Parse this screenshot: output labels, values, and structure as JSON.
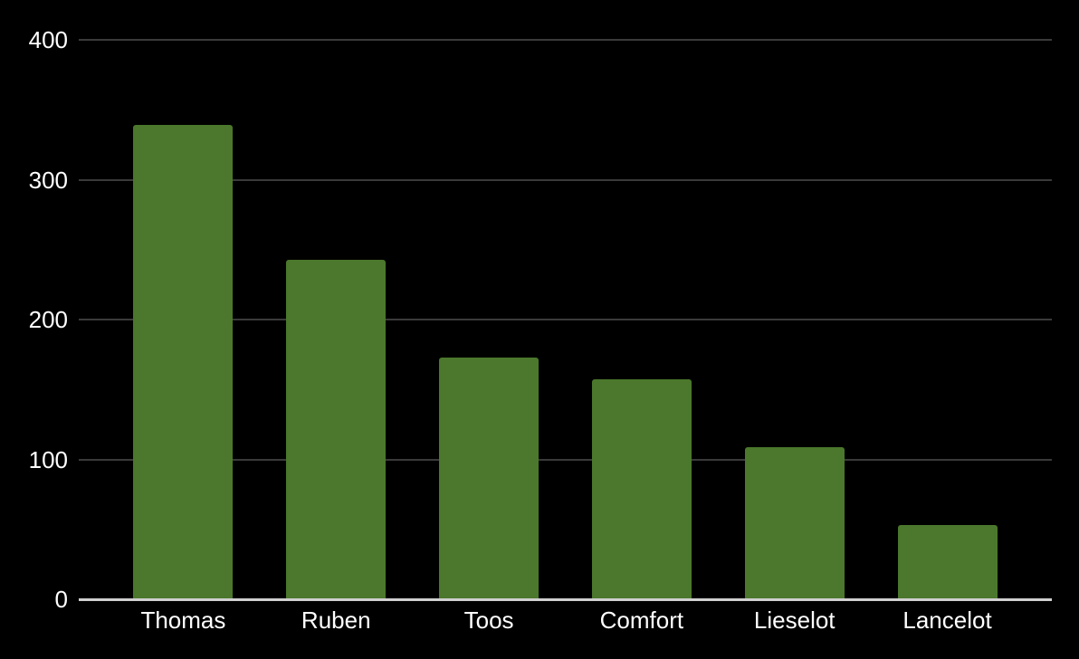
{
  "chart_data": {
    "type": "bar",
    "title": "",
    "xlabel": "",
    "ylabel": "",
    "categories": [
      "Thomas",
      "Ruben",
      "Toos",
      "Comfort",
      "Lieselot",
      "Lancelot"
    ],
    "values": [
      339,
      243,
      173,
      157,
      109,
      53
    ],
    "ylim": [
      0,
      400
    ],
    "yticks": [
      0,
      100,
      200,
      300,
      400
    ],
    "grid": true,
    "legend": false,
    "colors": {
      "background": "#000000",
      "bar": "#4b782c",
      "gridline": "#3a3a3a",
      "axis_line": "#d0d0d0",
      "text": "#ffffff"
    }
  }
}
